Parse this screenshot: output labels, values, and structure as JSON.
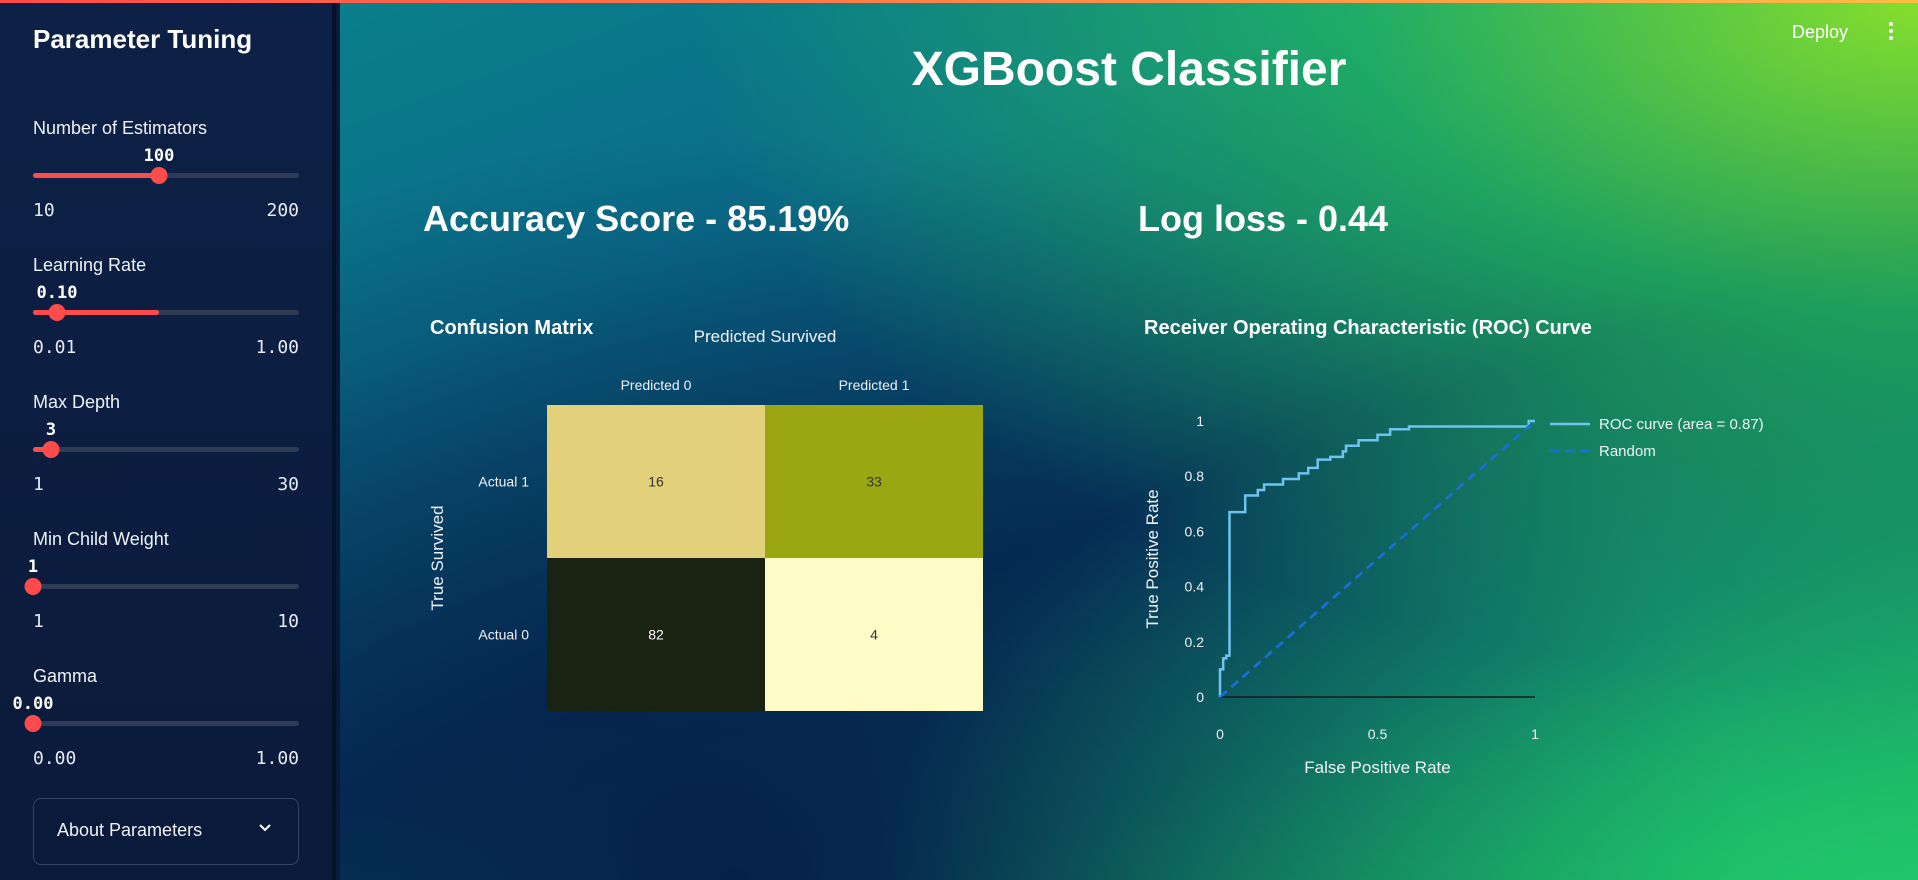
{
  "sidebar": {
    "title": "Parameter Tuning",
    "sliders": [
      {
        "label": "Number of Estimators",
        "value": "100",
        "min": "10",
        "max": "200",
        "fraction": 0.4737
      },
      {
        "label": "Learning Rate",
        "value": "0.10",
        "min": "0.01",
        "max": "1.00",
        "fraction": 0.0909
      },
      {
        "label": "Max Depth",
        "value": "3",
        "min": "1",
        "max": "30",
        "fraction": 0.069
      },
      {
        "label": "Min Child Weight",
        "value": "1",
        "min": "1",
        "max": "10",
        "fraction": 0.0
      },
      {
        "label": "Gamma",
        "value": "0.00",
        "min": "0.00",
        "max": "1.00",
        "fraction": 0.0
      }
    ],
    "expander": {
      "label": "About Parameters",
      "icon": "chevron-down-icon"
    }
  },
  "header": {
    "deploy_label": "Deploy",
    "menu_icon": "kebab-menu-icon"
  },
  "main": {
    "title": "XGBoost Classifier",
    "accuracy": "Accuracy Score - 85.19%",
    "logloss": "Log loss - 0.44",
    "confusion_title": "Confusion Matrix",
    "roc_title": "Receiver Operating Characteristic (ROC) Curve"
  },
  "colors": {
    "accent": "#ff4b4b",
    "roc_line": "#6ec3f0",
    "random_line": "#1a6fe0",
    "cm_low": "#1a2212",
    "cm_high": "#fefbc6"
  },
  "chart_data": [
    {
      "type": "heatmap",
      "title": "Predicted Survived",
      "xlabel": "Predicted Survived",
      "ylabel": "True Survived",
      "x_categories": [
        "Predicted 0",
        "Predicted 1"
      ],
      "y_categories": [
        "Actual 1",
        "Actual 0"
      ],
      "values": [
        [
          16,
          33
        ],
        [
          82,
          4
        ]
      ],
      "cell_colors": [
        [
          "#e2d07b",
          "#9aa713"
        ],
        [
          "#1a2212",
          "#fefbc6"
        ]
      ]
    },
    {
      "type": "line",
      "title": "",
      "xlabel": "False Positive Rate",
      "ylabel": "True Positive Rate",
      "xlim": [
        0,
        1
      ],
      "ylim": [
        0,
        1
      ],
      "xticks": [
        "0",
        "0.5",
        "1"
      ],
      "yticks": [
        "0",
        "0.2",
        "0.4",
        "0.6",
        "0.8",
        "1"
      ],
      "legend_position": "right",
      "series": [
        {
          "name": "ROC curve (area = 0.87)",
          "style": "solid",
          "x": [
            0,
            0,
            0.01,
            0.01,
            0.02,
            0.02,
            0.03,
            0.03,
            0.08,
            0.08,
            0.12,
            0.12,
            0.14,
            0.14,
            0.2,
            0.2,
            0.25,
            0.25,
            0.28,
            0.28,
            0.31,
            0.31,
            0.35,
            0.35,
            0.39,
            0.39,
            0.4,
            0.4,
            0.44,
            0.44,
            0.5,
            0.5,
            0.54,
            0.54,
            0.6,
            0.6,
            0.98,
            0.98,
            1.0
          ],
          "y": [
            0,
            0.1,
            0.1,
            0.14,
            0.14,
            0.15,
            0.15,
            0.67,
            0.67,
            0.73,
            0.73,
            0.75,
            0.75,
            0.77,
            0.77,
            0.79,
            0.79,
            0.81,
            0.81,
            0.83,
            0.83,
            0.86,
            0.86,
            0.87,
            0.87,
            0.89,
            0.89,
            0.91,
            0.91,
            0.93,
            0.93,
            0.95,
            0.95,
            0.97,
            0.97,
            0.98,
            0.98,
            1.0,
            1.0
          ]
        },
        {
          "name": "Random",
          "style": "dashed",
          "x": [
            0,
            1
          ],
          "y": [
            0,
            1
          ]
        }
      ]
    }
  ]
}
